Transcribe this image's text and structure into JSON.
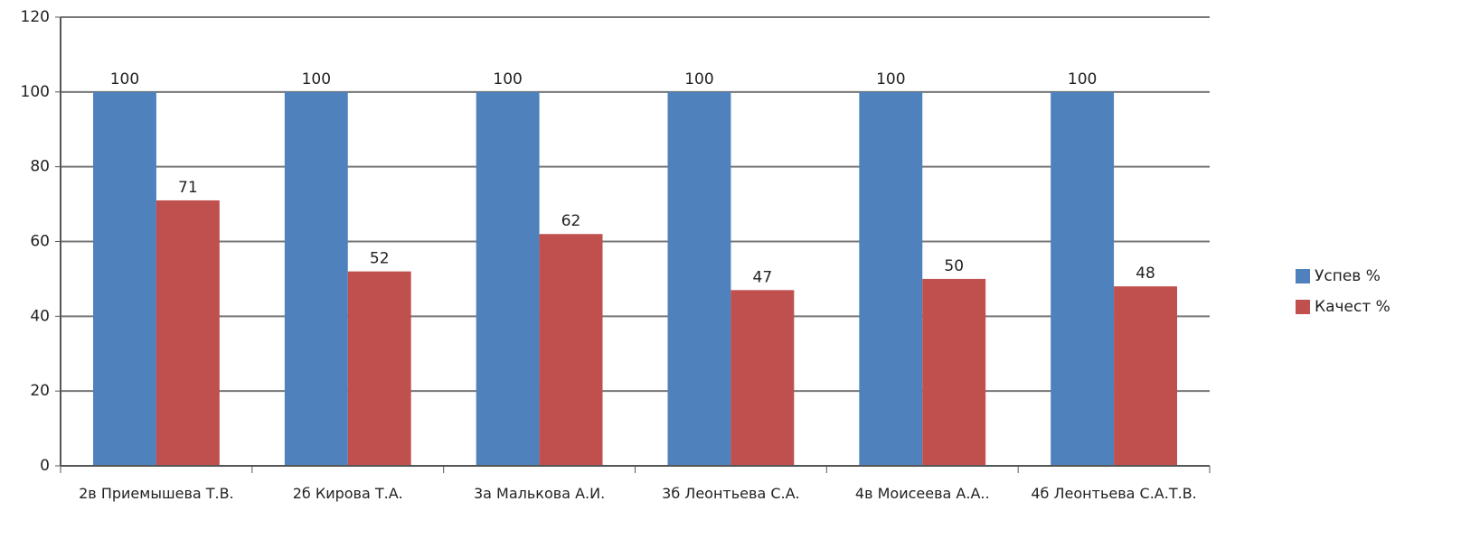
{
  "chart_data": {
    "type": "bar",
    "categories": [
      "2в Приемышева Т.В.",
      "2б Кирова Т.А.",
      "3а Малькова А.И.",
      "3б Леонтьева С.А.",
      "4в Моисеева А.А..",
      "4б Леонтьева С.А.Т.В."
    ],
    "series": [
      {
        "name": "Успев %",
        "color": "#4f81bd",
        "values": [
          100,
          100,
          100,
          100,
          100,
          100
        ]
      },
      {
        "name": "Качест %",
        "color": "#c0504d",
        "values": [
          71,
          52,
          62,
          47,
          50,
          48
        ]
      }
    ],
    "ylim": [
      0,
      120
    ],
    "yticks": [
      0,
      20,
      40,
      60,
      80,
      100,
      120
    ],
    "grid": true,
    "legend": "right"
  }
}
